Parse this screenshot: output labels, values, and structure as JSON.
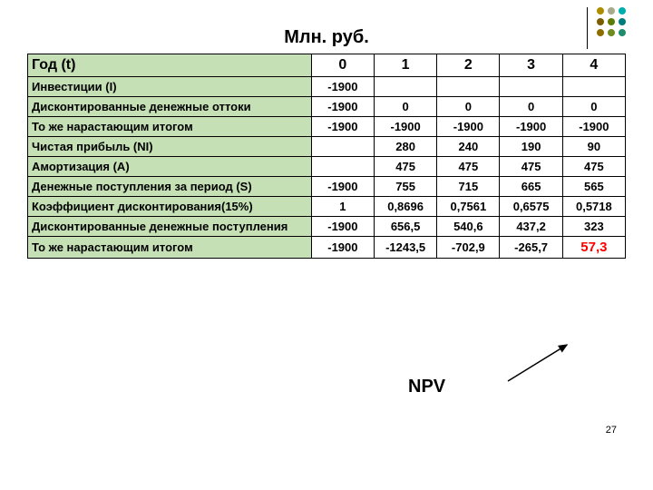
{
  "title": "Млн. руб.",
  "columns": [
    "Год (t)",
    "0",
    "1",
    "2",
    "3",
    "4"
  ],
  "rows": [
    {
      "label": "Инвестиции (I)",
      "cells": [
        "-1900",
        "",
        "",
        "",
        ""
      ]
    },
    {
      "label": "Дисконтированные денежные оттоки",
      "cells": [
        "-1900",
        "0",
        "0",
        "0",
        "0"
      ]
    },
    {
      "label": "То же нарастающим итогом",
      "cells": [
        "-1900",
        "-1900",
        "-1900",
        "-1900",
        "-1900"
      ]
    },
    {
      "label": "Чистая прибыль (NI)",
      "cells": [
        "",
        "280",
        "240",
        "190",
        "90"
      ]
    },
    {
      "label": "Амортизация  (A)",
      "cells": [
        "",
        "475",
        "475",
        "475",
        "475"
      ]
    },
    {
      "label": "Денежные поступления за период (S)",
      "cells": [
        "-1900",
        "755",
        "715",
        "665",
        "565"
      ]
    },
    {
      "label": "Коэффициент дисконтирования(15%)",
      "cells": [
        "1",
        "0,8696",
        "0,7561",
        "0,6575",
        "0,5718"
      ]
    },
    {
      "label": "Дисконтированные денежные поступления",
      "cells": [
        "-1900",
        "656,5",
        "540,6",
        "437,2",
        "323"
      ]
    },
    {
      "label": "То же нарастающим итогом",
      "cells": [
        "-1900",
        "-1243,5",
        "-702,9",
        "-265,7",
        "57,3"
      ],
      "last_red": true
    }
  ],
  "npv_label": "NPV",
  "page_number": "27",
  "deco_colors": [
    "#ad8c00",
    "#a8a88c",
    "#00adad",
    "#7b5c00",
    "#5c7b00",
    "#007b7b",
    "#8c6e00",
    "#6e8c1f",
    "#1f8c6e"
  ],
  "label_bg": "#c5e0b4"
}
